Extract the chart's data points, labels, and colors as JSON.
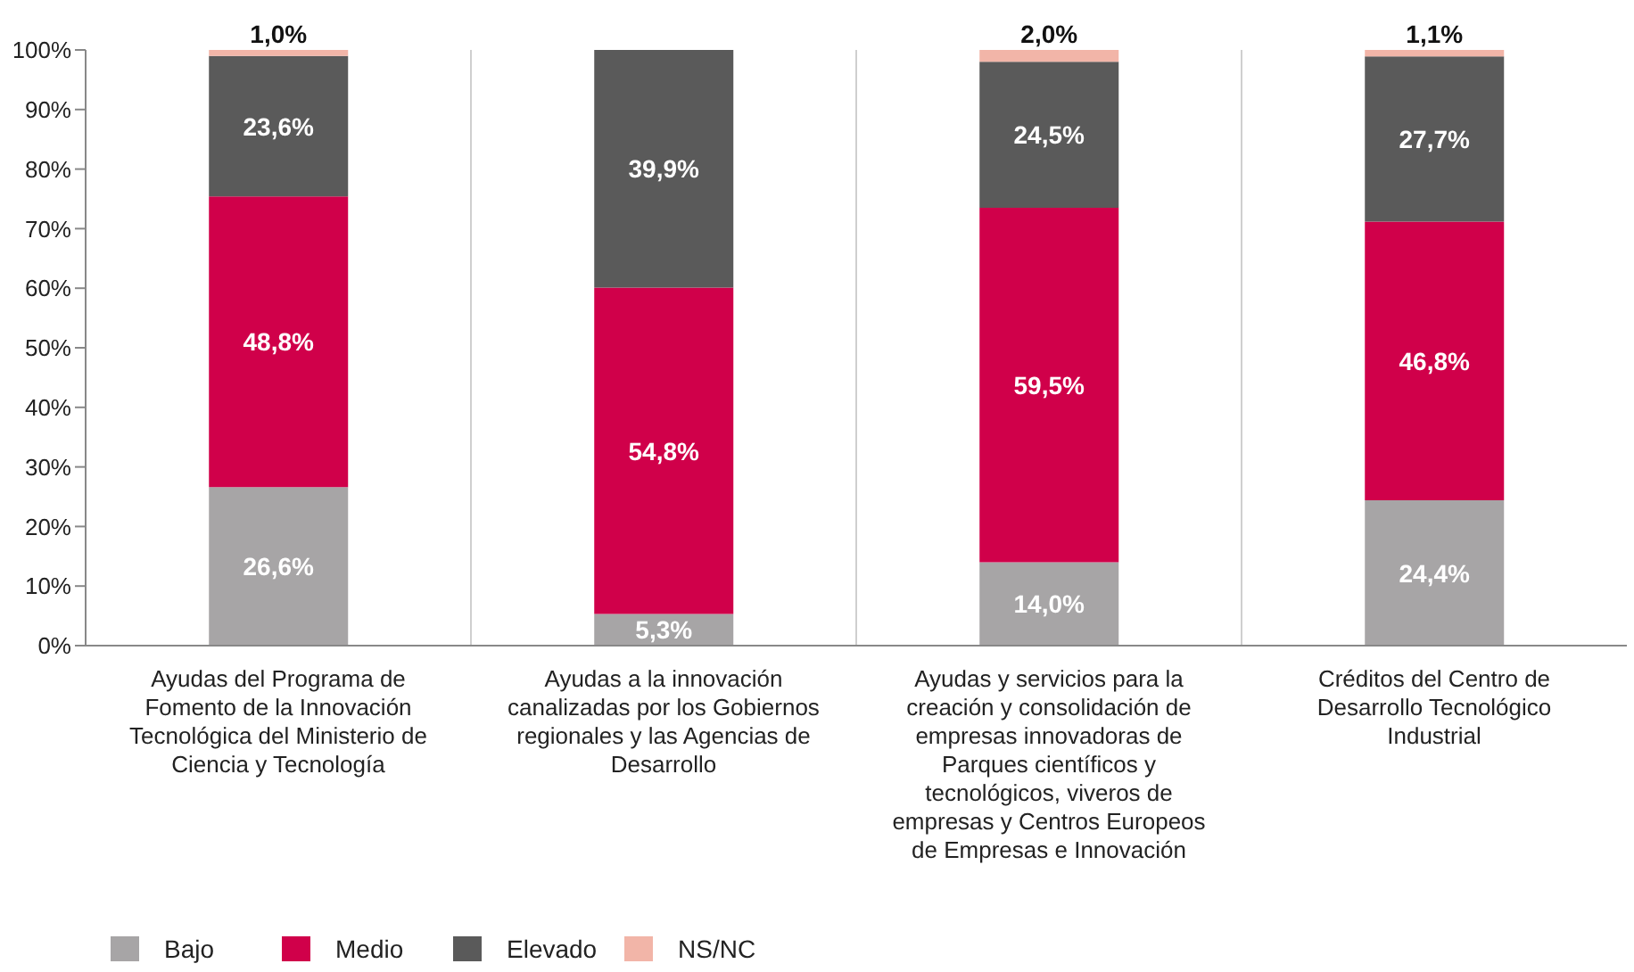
{
  "chart_data": {
    "type": "bar",
    "stacked": true,
    "categories": [
      "Ayudas del Programa de Fomento de la Innovación Tecnológica del Ministerio de Ciencia y Tecnología",
      "Ayudas a la innovación canalizadas por los Gobiernos regionales y las Agencias de Desarrollo",
      "Ayudas y servicios para la creación y consolidación de empresas innovadoras de Parques científicos y tecnológicos, viveros de empresas y Centros Europeos de Empresas e Innovación",
      "Créditos del Centro de Desarrollo Tecnológico Industrial"
    ],
    "series": [
      {
        "name": "Bajo",
        "color": "#a7a5a6",
        "values": [
          26.6,
          5.3,
          14.0,
          24.4
        ],
        "value_labels": [
          "26,6%",
          "5,3%",
          "14,0%",
          "24,4%"
        ]
      },
      {
        "name": "Medio",
        "color": "#d0004a",
        "values": [
          48.8,
          54.8,
          59.5,
          46.8
        ],
        "value_labels": [
          "48,8%",
          "54,8%",
          "59,5%",
          "46,8%"
        ]
      },
      {
        "name": "Elevado",
        "color": "#5a5a5a",
        "values": [
          23.6,
          39.9,
          24.5,
          27.7
        ],
        "value_labels": [
          "23,6%",
          "39,9%",
          "24,5%",
          "27,7%"
        ]
      },
      {
        "name": "NS/NC",
        "color": "#f2b5a8",
        "values": [
          1.0,
          null,
          2.0,
          1.1
        ],
        "value_labels": [
          "1,0%",
          null,
          "2,0%",
          "1,1%"
        ]
      }
    ],
    "ylim": [
      0,
      100
    ],
    "yticks": [
      {
        "value": 0,
        "label": "0%"
      },
      {
        "value": 10,
        "label": "10%"
      },
      {
        "value": 20,
        "label": "20%"
      },
      {
        "value": 30,
        "label": "30%"
      },
      {
        "value": 40,
        "label": "40%"
      },
      {
        "value": 50,
        "label": "50%"
      },
      {
        "value": 60,
        "label": "60%"
      },
      {
        "value": 70,
        "label": "70%"
      },
      {
        "value": 80,
        "label": "80%"
      },
      {
        "value": 90,
        "label": "90%"
      },
      {
        "value": 100,
        "label": "100%"
      }
    ],
    "grid": "x",
    "legend": "bottom left"
  }
}
